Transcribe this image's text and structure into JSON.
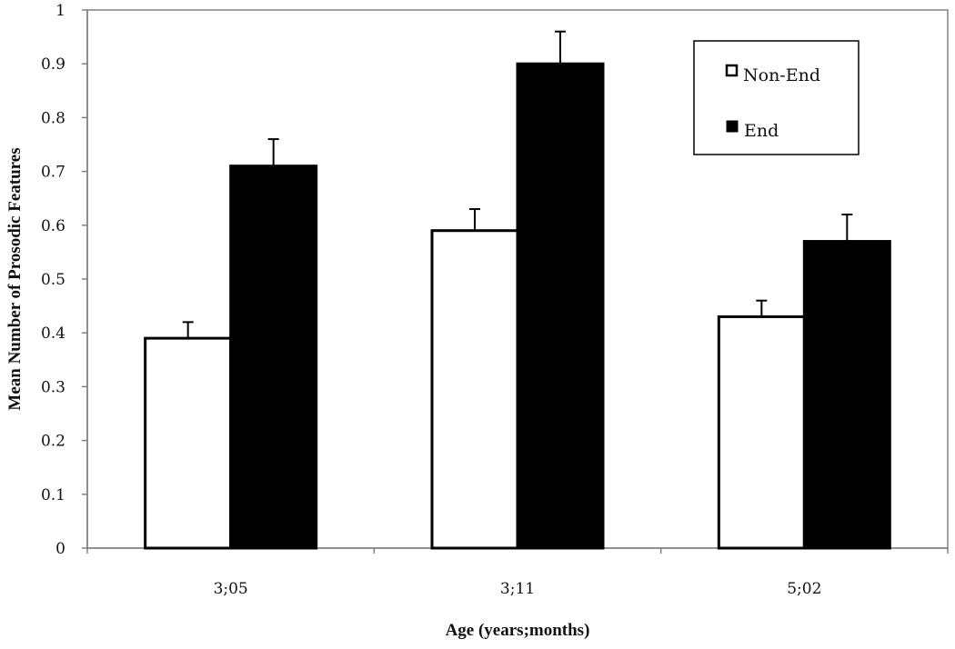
{
  "chart_data": {
    "type": "bar",
    "title": "",
    "xlabel": "Age (years;months)",
    "ylabel": "Mean Number of Prosodic Features",
    "categories": [
      "3;05",
      "3;11",
      "5;02"
    ],
    "series": [
      {
        "name": "Non-End",
        "values": [
          0.39,
          0.59,
          0.43
        ],
        "error": [
          0.03,
          0.04,
          0.03
        ],
        "fill": "#ffffff",
        "stroke": "#000000"
      },
      {
        "name": "End",
        "values": [
          0.71,
          0.9,
          0.57
        ],
        "error": [
          0.05,
          0.06,
          0.05
        ],
        "fill": "#000000",
        "stroke": "#000000"
      }
    ],
    "ylim": [
      0,
      1
    ],
    "yticks": [
      "0",
      "0.1",
      "0.2",
      "0.3",
      "0.4",
      "0.5",
      "0.6",
      "0.7",
      "0.8",
      "0.9",
      "1"
    ],
    "grid": false,
    "legend_position": "top-right"
  }
}
